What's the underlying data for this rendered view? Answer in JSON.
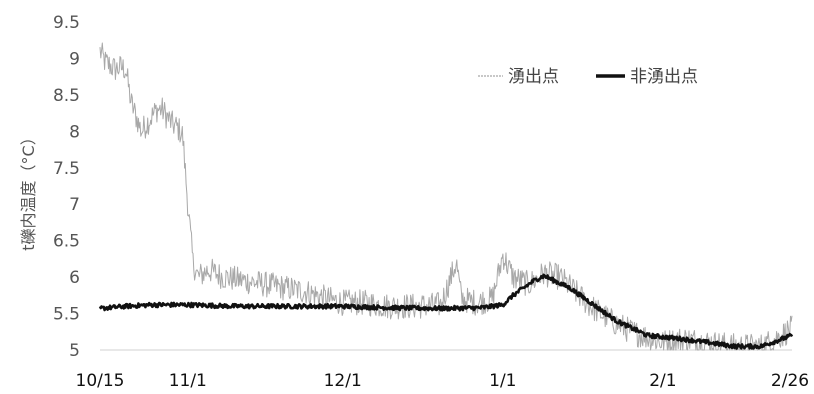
{
  "chart_data": {
    "type": "line",
    "ylabel": "t礫内温度（°C）",
    "ylim": [
      5,
      9.5
    ],
    "yticks": [
      "5",
      "5.5",
      "6",
      "6.5",
      "7",
      "7.5",
      "8",
      "8.5",
      "9",
      "9.5"
    ],
    "xlim": [
      "10/15",
      "2/26"
    ],
    "xticks": [
      {
        "label": "10/15",
        "date": "10/15"
      },
      {
        "label": "11/1",
        "date": "11/1"
      },
      {
        "label": "12/1",
        "date": "12/1"
      },
      {
        "label": "1/1",
        "date": "1/1"
      },
      {
        "label": "2/1",
        "date": "2/1"
      },
      {
        "label": "2/26",
        "date": "2/26"
      }
    ],
    "grid": false,
    "legend": "top-right",
    "series": [
      {
        "name": "湧出点",
        "color": "#a8a8a8",
        "noise": 0.18,
        "points": [
          [
            "10/15",
            9.1
          ],
          [
            "10/16",
            8.95
          ],
          [
            "10/17",
            8.9
          ],
          [
            "10/18",
            8.85
          ],
          [
            "10/19",
            8.88
          ],
          [
            "10/20",
            8.85
          ],
          [
            "10/21",
            8.4
          ],
          [
            "10/22",
            8.2
          ],
          [
            "10/23",
            8.0
          ],
          [
            "10/24",
            8.1
          ],
          [
            "10/25",
            8.2
          ],
          [
            "10/26",
            8.3
          ],
          [
            "10/27",
            8.3
          ],
          [
            "10/28",
            8.2
          ],
          [
            "10/29",
            8.1
          ],
          [
            "10/30",
            8.05
          ],
          [
            "10/31",
            7.95
          ],
          [
            "11/1",
            7.0
          ],
          [
            "11/2",
            6.2
          ],
          [
            "11/3",
            6.0
          ],
          [
            "11/5",
            6.1
          ],
          [
            "11/8",
            6.0
          ],
          [
            "11/12",
            5.95
          ],
          [
            "11/16",
            5.9
          ],
          [
            "11/20",
            5.85
          ],
          [
            "11/24",
            5.8
          ],
          [
            "11/28",
            5.7
          ],
          [
            "12/1",
            5.65
          ],
          [
            "12/5",
            5.65
          ],
          [
            "12/10",
            5.6
          ],
          [
            "12/15",
            5.6
          ],
          [
            "12/20",
            5.62
          ],
          [
            "12/23",
            6.2
          ],
          [
            "12/24",
            5.7
          ],
          [
            "12/27",
            5.65
          ],
          [
            "12/30",
            5.7
          ],
          [
            "1/1",
            6.3
          ],
          [
            "1/3",
            6.0
          ],
          [
            "1/6",
            5.9
          ],
          [
            "1/9",
            6.05
          ],
          [
            "1/12",
            6.0
          ],
          [
            "1/15",
            5.8
          ],
          [
            "1/18",
            5.6
          ],
          [
            "1/22",
            5.4
          ],
          [
            "1/26",
            5.25
          ],
          [
            "2/1",
            5.1
          ],
          [
            "2/5",
            5.15
          ],
          [
            "2/10",
            5.1
          ],
          [
            "2/15",
            5.05
          ],
          [
            "2/20",
            5.05
          ],
          [
            "2/24",
            5.2
          ],
          [
            "2/26",
            5.3
          ]
        ]
      },
      {
        "name": "非湧出点",
        "color": "#111111",
        "noise": 0.03,
        "points": [
          [
            "10/15",
            5.57
          ],
          [
            "10/20",
            5.6
          ],
          [
            "10/25",
            5.62
          ],
          [
            "11/1",
            5.62
          ],
          [
            "11/10",
            5.6
          ],
          [
            "11/20",
            5.6
          ],
          [
            "12/1",
            5.6
          ],
          [
            "12/10",
            5.58
          ],
          [
            "12/20",
            5.57
          ],
          [
            "12/28",
            5.58
          ],
          [
            "1/1",
            5.62
          ],
          [
            "1/3",
            5.75
          ],
          [
            "1/5",
            5.85
          ],
          [
            "1/7",
            5.95
          ],
          [
            "1/9",
            6.02
          ],
          [
            "1/11",
            5.95
          ],
          [
            "1/14",
            5.85
          ],
          [
            "1/17",
            5.7
          ],
          [
            "1/20",
            5.55
          ],
          [
            "1/23",
            5.4
          ],
          [
            "1/26",
            5.3
          ],
          [
            "1/29",
            5.2
          ],
          [
            "2/1",
            5.18
          ],
          [
            "2/5",
            5.15
          ],
          [
            "2/10",
            5.1
          ],
          [
            "2/15",
            5.05
          ],
          [
            "2/20",
            5.05
          ],
          [
            "2/24",
            5.15
          ],
          [
            "2/26",
            5.2
          ]
        ]
      }
    ]
  }
}
